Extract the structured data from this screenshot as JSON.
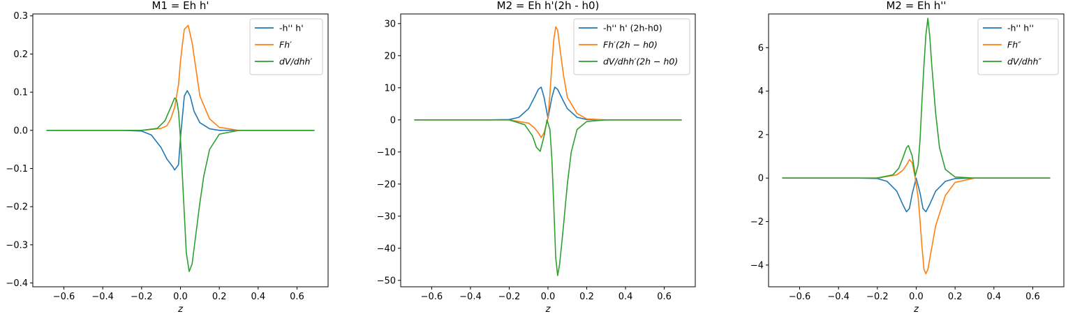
{
  "chart_data": [
    {
      "type": "line",
      "title": "M1 = Eh h'",
      "xlabel": "z",
      "ylabel": "",
      "xlim": [
        -0.76,
        0.76
      ],
      "ylim": [
        -0.41,
        0.305
      ],
      "xticks": [
        -0.6,
        -0.4,
        -0.2,
        0.0,
        0.2,
        0.4,
        0.6
      ],
      "xtick_labels": [
        "−0.6",
        "−0.4",
        "−0.2",
        "0.0",
        "0.2",
        "0.4",
        "0.6"
      ],
      "yticks": [
        -0.4,
        -0.3,
        -0.2,
        -0.1,
        0.0,
        0.1,
        0.2,
        0.3
      ],
      "ytick_labels": [
        "−0.4",
        "−0.3",
        "−0.2",
        "−0.1",
        "0.0",
        "0.1",
        "0.2",
        "0.3"
      ],
      "grid": false,
      "legend_position": "top-right",
      "series": [
        {
          "name": "-h'' h'",
          "math": false,
          "color": "#1f77b4",
          "x": [
            -0.69,
            -0.3,
            -0.2,
            -0.15,
            -0.1,
            -0.07,
            -0.04,
            -0.03,
            -0.01,
            0,
            0.02,
            0.035,
            0.05,
            0.07,
            0.1,
            0.15,
            0.2,
            0.3,
            0.69
          ],
          "y": [
            0,
            0,
            -0.002,
            -0.012,
            -0.045,
            -0.075,
            -0.095,
            -0.104,
            -0.09,
            -0.02,
            0.09,
            0.104,
            0.09,
            0.05,
            0.02,
            0.004,
            0,
            0,
            0
          ]
        },
        {
          "name": "Fh′",
          "math": true,
          "color": "#ff7f0e",
          "x": [
            -0.69,
            -0.2,
            -0.1,
            -0.07,
            -0.05,
            -0.03,
            -0.01,
            0,
            0.01,
            0.02,
            0.03,
            0.04,
            0.06,
            0.08,
            0.1,
            0.15,
            0.2,
            0.3,
            0.69
          ],
          "y": [
            0,
            0,
            0.005,
            0.012,
            0.03,
            0.06,
            0.12,
            0.18,
            0.225,
            0.265,
            0.27,
            0.275,
            0.23,
            0.16,
            0.09,
            0.03,
            0.008,
            0,
            0
          ]
        },
        {
          "name": "dV/dhh′",
          "math": true,
          "color": "#2ca02c",
          "x": [
            -0.69,
            -0.2,
            -0.12,
            -0.08,
            -0.05,
            -0.03,
            -0.02,
            -0.01,
            0,
            0.01,
            0.02,
            0.03,
            0.045,
            0.06,
            0.08,
            0.1,
            0.12,
            0.15,
            0.2,
            0.3,
            0.69
          ],
          "y": [
            0,
            0,
            0.005,
            0.025,
            0.06,
            0.085,
            0.08,
            0.05,
            -0.02,
            -0.12,
            -0.22,
            -0.32,
            -0.37,
            -0.35,
            -0.27,
            -0.19,
            -0.12,
            -0.05,
            -0.01,
            0,
            0
          ]
        }
      ]
    },
    {
      "type": "line",
      "title": "M2 = Eh h'(2h - h0)",
      "xlabel": "z",
      "ylabel": "",
      "xlim": [
        -0.76,
        0.76
      ],
      "ylim": [
        -52,
        33
      ],
      "xticks": [
        -0.6,
        -0.4,
        -0.2,
        0.0,
        0.2,
        0.4,
        0.6
      ],
      "xtick_labels": [
        "−0.6",
        "−0.4",
        "−0.2",
        "0.0",
        "0.2",
        "0.4",
        "0.6"
      ],
      "yticks": [
        -50,
        -40,
        -30,
        -20,
        -10,
        0,
        10,
        20,
        30
      ],
      "ytick_labels": [
        "−50",
        "−40",
        "−30",
        "−20",
        "−10",
        "0",
        "10",
        "20",
        "30"
      ],
      "grid": false,
      "legend_position": "top-right",
      "series": [
        {
          "name": "-h'' h' (2h-h0)",
          "math": false,
          "color": "#1f77b4",
          "x": [
            -0.69,
            -0.3,
            -0.2,
            -0.15,
            -0.1,
            -0.07,
            -0.05,
            -0.035,
            -0.02,
            0,
            0.02,
            0.035,
            0.05,
            0.07,
            0.1,
            0.15,
            0.2,
            0.3,
            0.69
          ],
          "y": [
            0,
            0,
            0.1,
            0.8,
            3.5,
            7,
            9.5,
            10.2,
            7,
            0.5,
            7,
            10.2,
            9.5,
            7,
            3.5,
            0.8,
            0.1,
            0,
            0
          ]
        },
        {
          "name": "Fh′(2h − h0)",
          "math": true,
          "color": "#ff7f0e",
          "x": [
            -0.69,
            -0.2,
            -0.1,
            -0.07,
            -0.05,
            -0.035,
            -0.02,
            0,
            0.01,
            0.02,
            0.03,
            0.04,
            0.05,
            0.06,
            0.08,
            0.1,
            0.15,
            0.2,
            0.3,
            0.69
          ],
          "y": [
            0,
            0,
            -1,
            -2.5,
            -4,
            -5.5,
            -4,
            0.5,
            8,
            17,
            25,
            29,
            28,
            23,
            14,
            7,
            2,
            0.3,
            0,
            0
          ]
        },
        {
          "name": "dV/dhh′(2h − h0)",
          "math": true,
          "color": "#2ca02c",
          "x": [
            -0.69,
            -0.2,
            -0.12,
            -0.08,
            -0.06,
            -0.04,
            -0.02,
            -0.005,
            0.01,
            0.02,
            0.03,
            0.04,
            0.05,
            0.06,
            0.08,
            0.1,
            0.12,
            0.15,
            0.2,
            0.3,
            0.69
          ],
          "y": [
            0,
            0,
            -1.5,
            -5,
            -8.5,
            -9.8,
            -5,
            0,
            -3,
            -12,
            -27,
            -43,
            -48.5,
            -45,
            -33,
            -20,
            -10,
            -3,
            -0.5,
            0,
            0
          ]
        }
      ]
    },
    {
      "type": "line",
      "title": "M2 = Eh h''",
      "xlabel": "z",
      "ylabel": "",
      "xlim": [
        -0.76,
        0.76
      ],
      "ylim": [
        -5.0,
        7.55
      ],
      "xticks": [
        -0.6,
        -0.4,
        -0.2,
        0.0,
        0.2,
        0.4,
        0.6
      ],
      "xtick_labels": [
        "−0.6",
        "−0.4",
        "−0.2",
        "0.0",
        "0.2",
        "0.4",
        "0.6"
      ],
      "yticks": [
        -4,
        -2,
        0,
        2,
        4,
        6
      ],
      "ytick_labels": [
        "−4",
        "−2",
        "0",
        "2",
        "4",
        "6"
      ],
      "grid": false,
      "legend_position": "top-right",
      "series": [
        {
          "name": "-h'' h''",
          "math": false,
          "color": "#1f77b4",
          "x": [
            -0.69,
            -0.3,
            -0.2,
            -0.15,
            -0.1,
            -0.07,
            -0.05,
            -0.035,
            -0.02,
            0,
            0.02,
            0.035,
            0.05,
            0.07,
            0.1,
            0.15,
            0.2,
            0.3,
            0.69
          ],
          "y": [
            0,
            0,
            -0.02,
            -0.15,
            -0.6,
            -1.2,
            -1.55,
            -1.4,
            -0.7,
            0,
            -0.7,
            -1.4,
            -1.55,
            -1.2,
            -0.6,
            -0.15,
            -0.02,
            0,
            0
          ]
        },
        {
          "name": "Fh″",
          "math": true,
          "color": "#ff7f0e",
          "x": [
            -0.69,
            -0.2,
            -0.1,
            -0.07,
            -0.05,
            -0.035,
            -0.02,
            -0.005,
            0.01,
            0.02,
            0.03,
            0.04,
            0.05,
            0.06,
            0.08,
            0.1,
            0.15,
            0.2,
            0.3,
            0.69
          ],
          "y": [
            0,
            0,
            0.15,
            0.35,
            0.6,
            0.85,
            0.7,
            0,
            -0.9,
            -2,
            -3.2,
            -4.2,
            -4.4,
            -4.2,
            -3.2,
            -2.2,
            -0.8,
            -0.2,
            0,
            0
          ]
        },
        {
          "name": "dV/dhh″",
          "math": true,
          "color": "#2ca02c",
          "x": [
            -0.69,
            -0.2,
            -0.12,
            -0.09,
            -0.07,
            -0.05,
            -0.04,
            -0.02,
            -0.005,
            0.01,
            0.02,
            0.03,
            0.04,
            0.05,
            0.06,
            0.07,
            0.08,
            0.1,
            0.12,
            0.15,
            0.2,
            0.3,
            0.69
          ],
          "y": [
            0,
            0,
            0.15,
            0.45,
            0.9,
            1.4,
            1.5,
            1.0,
            0.1,
            0.6,
            1.8,
            3.6,
            5.2,
            6.6,
            7.35,
            6.5,
            5.2,
            3,
            1.4,
            0.4,
            0.05,
            0,
            0
          ]
        }
      ]
    }
  ]
}
